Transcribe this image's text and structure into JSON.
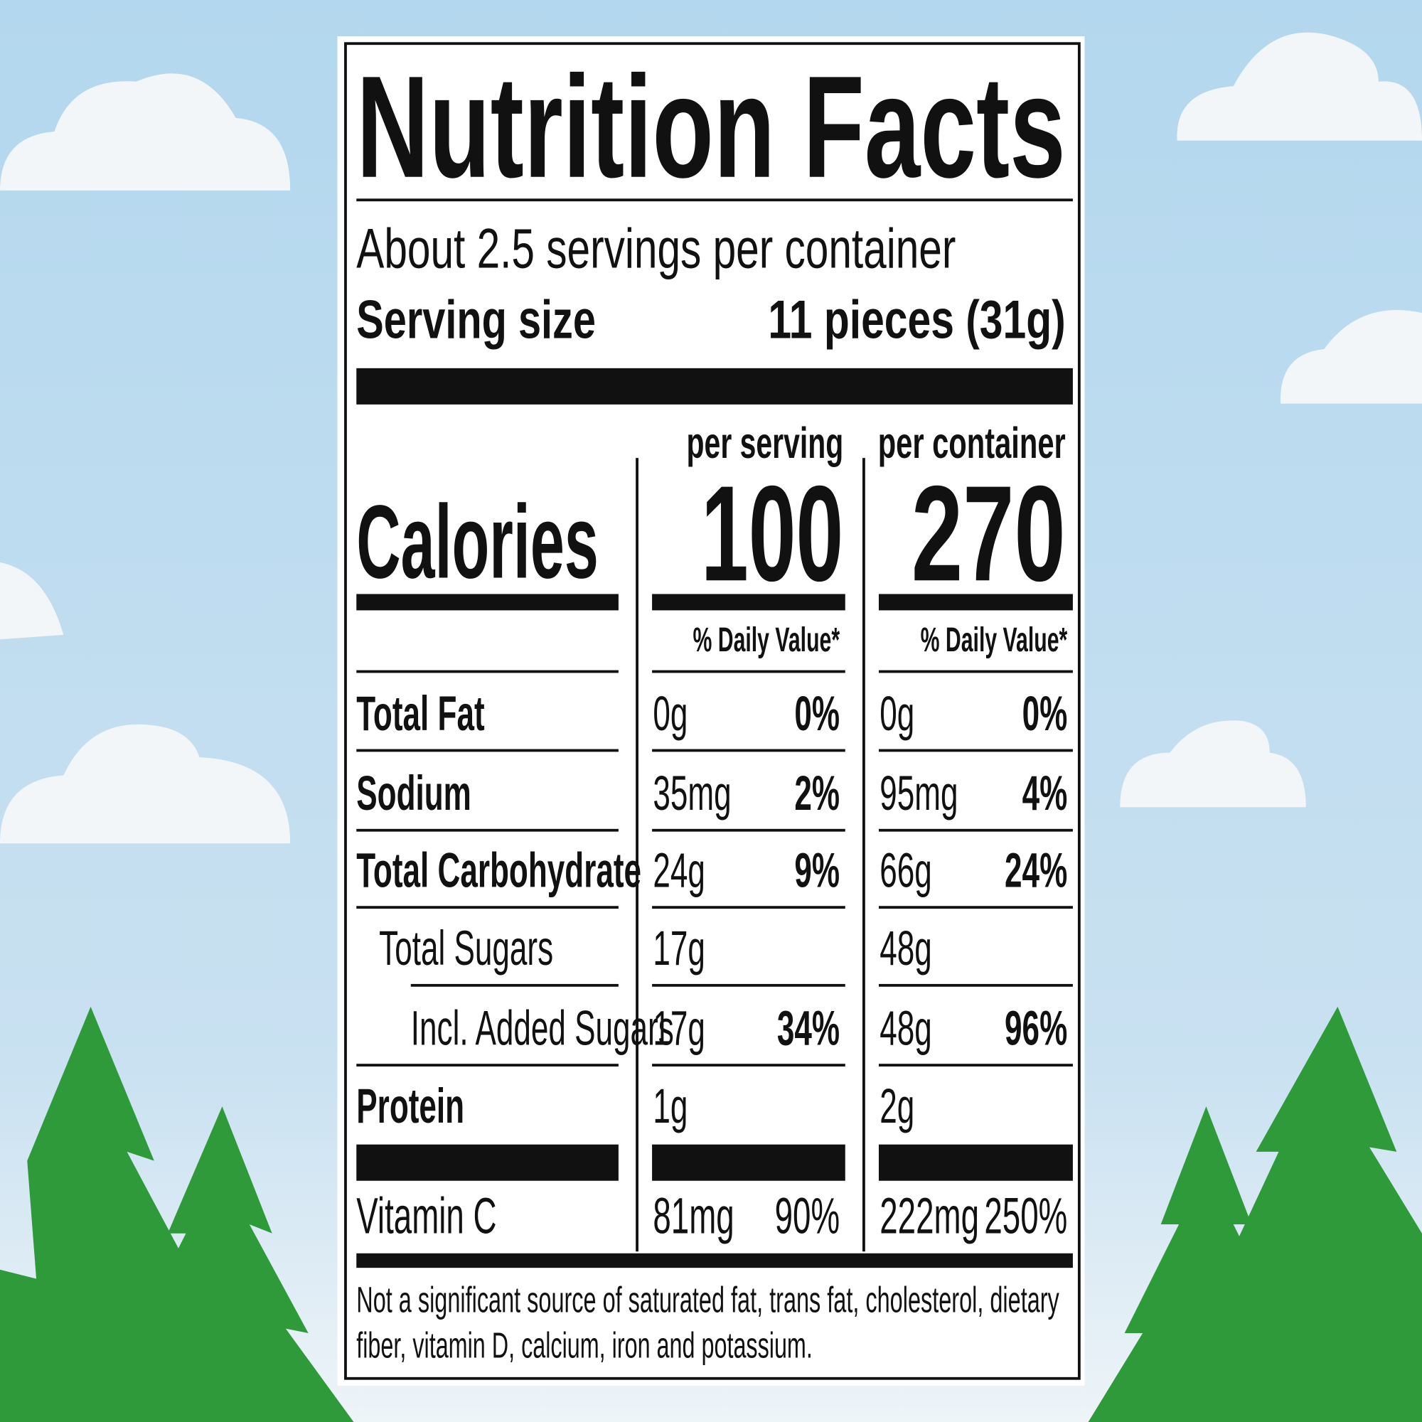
{
  "header": {
    "title": "Nutrition Facts",
    "servings": "About 2.5 servings per container",
    "serving_size_label": "Serving size",
    "serving_size": "11 pieces (31g)"
  },
  "columns": [
    "per serving",
    "per container"
  ],
  "calories": {
    "label": "Calories",
    "per_serving": "100",
    "per_container": "270"
  },
  "daily_value_header": "% Daily Value*",
  "rows": [
    {
      "name": "Total Fat",
      "per_serving": {
        "amount": "0g",
        "dv": "0%"
      },
      "per_container": {
        "amount": "0g",
        "dv": "0%"
      }
    },
    {
      "name": "Sodium",
      "per_serving": {
        "amount": "35mg",
        "dv": "2%"
      },
      "per_container": {
        "amount": "95mg",
        "dv": "4%"
      }
    },
    {
      "name": "Total Carbohydrate",
      "per_serving": {
        "amount": "24g",
        "dv": "9%"
      },
      "per_container": {
        "amount": "66g",
        "dv": "24%"
      }
    },
    {
      "name": "Total Sugars",
      "per_serving": {
        "amount": "17g"
      },
      "per_container": {
        "amount": "48g"
      }
    },
    {
      "name": "Incl. Added Sugars",
      "per_serving": {
        "amount": "17g",
        "dv": "34%"
      },
      "per_container": {
        "amount": "48g",
        "dv": "96%"
      }
    },
    {
      "name": "Protein",
      "per_serving": {
        "amount": "1g"
      },
      "per_container": {
        "amount": "2g"
      }
    },
    {
      "name": "Vitamin C",
      "per_serving": {
        "amount": "81mg",
        "dv": "90%"
      },
      "per_container": {
        "amount": "222mg",
        "dv": "250%"
      }
    }
  ],
  "footnote": [
    "Not a significant source of saturated fat, trans fat, cholesterol, dietary",
    "fiber, vitamin D, calcium, iron and potassium."
  ]
}
